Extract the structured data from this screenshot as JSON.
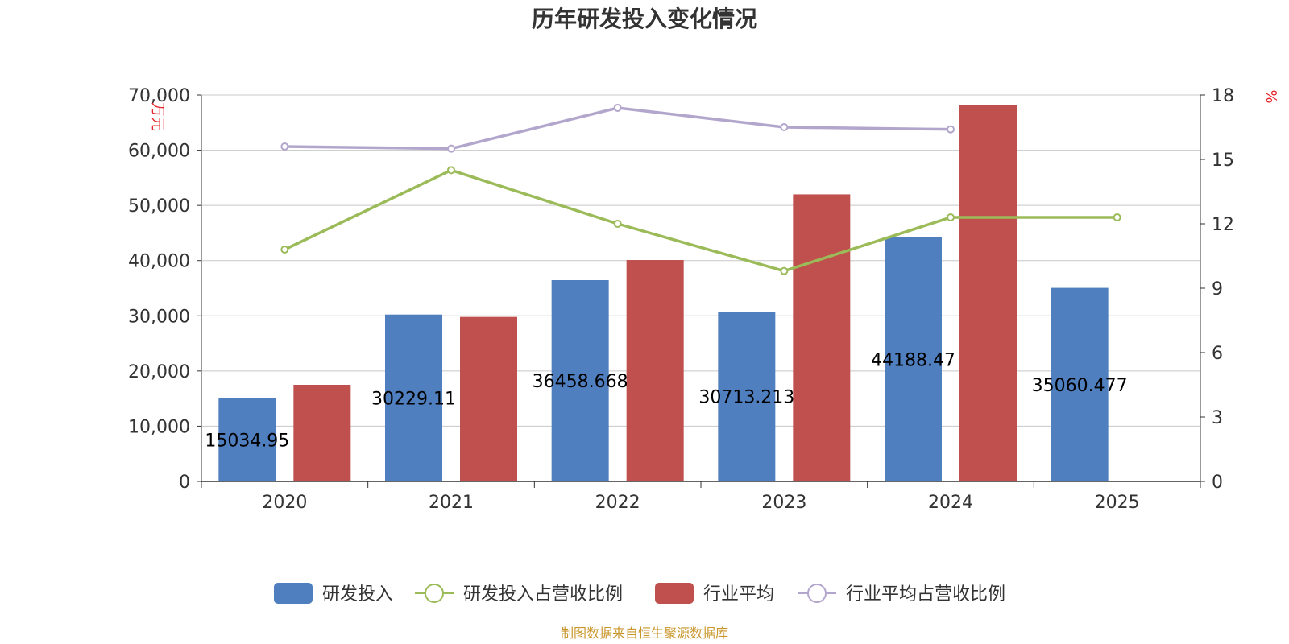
{
  "chart_data": {
    "type": "bar",
    "title": "历年研发投入变化情况",
    "categories": [
      "2020",
      "2021",
      "2022",
      "2023",
      "2024",
      "2025"
    ],
    "y_left": {
      "unit": "万元",
      "ticks": [
        "0",
        "10,000",
        "20,000",
        "30,000",
        "40,000",
        "50,000",
        "60,000",
        "70,000"
      ],
      "range": [
        0,
        70000
      ]
    },
    "y_right": {
      "unit": "%",
      "ticks": [
        "0",
        "3",
        "6",
        "9",
        "12",
        "15",
        "18"
      ],
      "range": [
        0,
        18
      ]
    },
    "series": [
      {
        "name": "研发投入",
        "kind": "bar",
        "axis": "left",
        "color": "#4f7fbf",
        "values": [
          15034.95,
          30229.11,
          36458.668,
          30713.213,
          44188.47,
          35060.477
        ],
        "labels": [
          "15034.95",
          "30229.11",
          "36458.668",
          "30713.213",
          "44188.47",
          "35060.477"
        ]
      },
      {
        "name": "研发投入占营收比例",
        "kind": "line",
        "axis": "right",
        "color": "#9bbb59",
        "values": [
          10.8,
          14.5,
          12.0,
          9.8,
          12.3,
          12.3
        ]
      },
      {
        "name": "行业平均",
        "kind": "bar",
        "axis": "left",
        "color": "#c0504d",
        "values": [
          17500,
          29800,
          40100,
          52000,
          68200,
          null
        ]
      },
      {
        "name": "行业平均占营收比例",
        "kind": "line",
        "axis": "right",
        "color": "#b3a6cc",
        "values": [
          15.6,
          15.5,
          17.4,
          16.5,
          16.4,
          null
        ]
      }
    ],
    "legend_position": "bottom",
    "grid": true
  },
  "source": "制图数据来自恒生聚源数据库"
}
